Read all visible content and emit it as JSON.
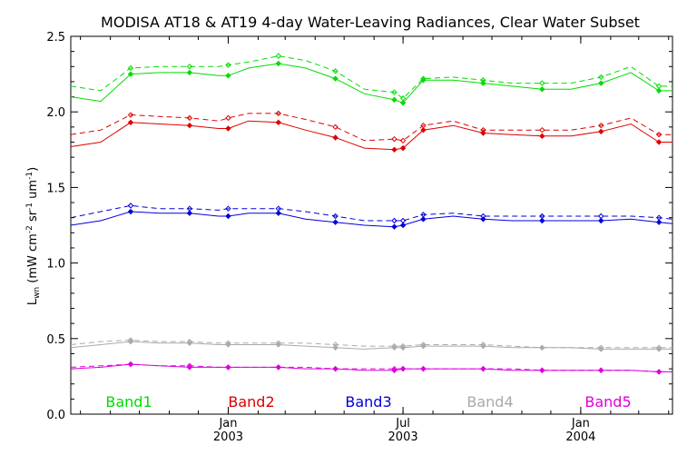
{
  "chart_data": {
    "type": "line",
    "title": "MODISA AT18 & AT19 4-day Water-Leaving Radiances, Clear Water Subset",
    "ylabel_main": "L",
    "ylabel_sub": "wn",
    "ylabel_rest": " (mW cm",
    "ylabel_exp1": "-2",
    "ylabel_mid": " sr",
    "ylabel_exp2": "-1",
    "ylabel_mid2": " um",
    "ylabel_exp3": "-1",
    "ylabel_end": ")",
    "ylim": [
      0.0,
      2.5
    ],
    "y_ticks": [
      {
        "value": 0.0,
        "label": "0.0"
      },
      {
        "value": 0.5,
        "label": "0.5"
      },
      {
        "value": 1.0,
        "label": "1.0"
      },
      {
        "value": 1.5,
        "label": "1.5"
      },
      {
        "value": 2.0,
        "label": "2.0"
      },
      {
        "value": 2.5,
        "label": "2.5"
      }
    ],
    "xlim": [
      "2002-07-22",
      "2004-04-05"
    ],
    "x_ticks": [
      {
        "date": "2003-01-01",
        "label1": "Jan",
        "label2": "2003"
      },
      {
        "date": "2003-07-01",
        "label1": "Jul",
        "label2": "2003"
      },
      {
        "date": "2004-01-01",
        "label1": "Jan",
        "label2": "2004"
      }
    ],
    "x_dates": [
      "2002-07-22",
      "2002-08-22",
      "2002-09-22",
      "2002-10-22",
      "2002-11-22",
      "2002-12-22",
      "2003-01-01",
      "2003-01-22",
      "2003-02-22",
      "2003-03-22",
      "2003-04-22",
      "2003-05-22",
      "2003-06-22",
      "2003-07-01",
      "2003-07-22",
      "2003-08-22",
      "2003-09-22",
      "2003-10-22",
      "2003-11-22",
      "2003-12-22",
      "2004-01-22",
      "2004-02-22",
      "2004-03-22",
      "2004-04-05"
    ],
    "series": [
      {
        "name": "Band1",
        "color": "#00dd00",
        "at18": [
          2.1,
          2.07,
          2.25,
          2.26,
          2.26,
          2.24,
          2.24,
          2.29,
          2.32,
          2.29,
          2.22,
          2.12,
          2.08,
          2.06,
          2.21,
          2.21,
          2.19,
          2.17,
          2.15,
          2.15,
          2.19,
          2.26,
          2.14,
          2.14
        ],
        "at19": [
          2.17,
          2.14,
          2.29,
          2.3,
          2.3,
          2.3,
          2.31,
          2.33,
          2.37,
          2.34,
          2.27,
          2.15,
          2.13,
          2.09,
          2.22,
          2.23,
          2.21,
          2.19,
          2.19,
          2.19,
          2.23,
          2.3,
          2.17,
          2.17
        ]
      },
      {
        "name": "Band2",
        "color": "#dd0000",
        "at18": [
          1.77,
          1.8,
          1.93,
          1.92,
          1.91,
          1.89,
          1.89,
          1.94,
          1.93,
          1.88,
          1.83,
          1.76,
          1.75,
          1.76,
          1.88,
          1.91,
          1.86,
          1.85,
          1.84,
          1.84,
          1.87,
          1.92,
          1.8,
          1.8
        ],
        "at19": [
          1.85,
          1.88,
          1.98,
          1.97,
          1.96,
          1.94,
          1.96,
          1.99,
          1.99,
          1.95,
          1.9,
          1.81,
          1.82,
          1.81,
          1.91,
          1.94,
          1.88,
          1.88,
          1.88,
          1.88,
          1.91,
          1.96,
          1.85,
          1.85
        ],
        "dummy": null
      },
      {
        "name": "Band3",
        "color": "#0000dd",
        "at18": [
          1.25,
          1.28,
          1.34,
          1.33,
          1.33,
          1.31,
          1.31,
          1.33,
          1.33,
          1.29,
          1.27,
          1.25,
          1.24,
          1.25,
          1.29,
          1.31,
          1.29,
          1.28,
          1.28,
          1.28,
          1.28,
          1.29,
          1.27,
          1.26
        ],
        "at19": [
          1.3,
          1.34,
          1.38,
          1.36,
          1.36,
          1.35,
          1.36,
          1.36,
          1.36,
          1.34,
          1.31,
          1.28,
          1.28,
          1.28,
          1.32,
          1.33,
          1.31,
          1.31,
          1.31,
          1.31,
          1.31,
          1.31,
          1.3,
          1.29
        ]
      },
      {
        "name": "Band4",
        "color": "#aaaaaa",
        "at18": [
          0.44,
          0.46,
          0.48,
          0.47,
          0.47,
          0.46,
          0.46,
          0.46,
          0.46,
          0.45,
          0.44,
          0.43,
          0.44,
          0.44,
          0.45,
          0.45,
          0.45,
          0.44,
          0.44,
          0.44,
          0.43,
          0.43,
          0.43,
          0.43
        ],
        "at19": [
          0.46,
          0.48,
          0.49,
          0.48,
          0.48,
          0.47,
          0.47,
          0.47,
          0.47,
          0.47,
          0.46,
          0.45,
          0.45,
          0.45,
          0.46,
          0.46,
          0.46,
          0.45,
          0.44,
          0.44,
          0.44,
          0.44,
          0.44,
          0.44
        ]
      },
      {
        "name": "Band5",
        "color": "#dd00dd",
        "at18": [
          0.3,
          0.31,
          0.33,
          0.32,
          0.31,
          0.31,
          0.31,
          0.31,
          0.31,
          0.3,
          0.3,
          0.29,
          0.29,
          0.3,
          0.3,
          0.3,
          0.3,
          0.29,
          0.29,
          0.29,
          0.29,
          0.29,
          0.28,
          0.28
        ],
        "at19": [
          0.31,
          0.32,
          0.33,
          0.32,
          0.32,
          0.31,
          0.31,
          0.31,
          0.31,
          0.31,
          0.3,
          0.3,
          0.3,
          0.3,
          0.3,
          0.3,
          0.3,
          0.3,
          0.29,
          0.29,
          0.29,
          0.29,
          0.28,
          0.28
        ]
      }
    ],
    "grid": false,
    "legend_placement": "bottom inside plot"
  }
}
